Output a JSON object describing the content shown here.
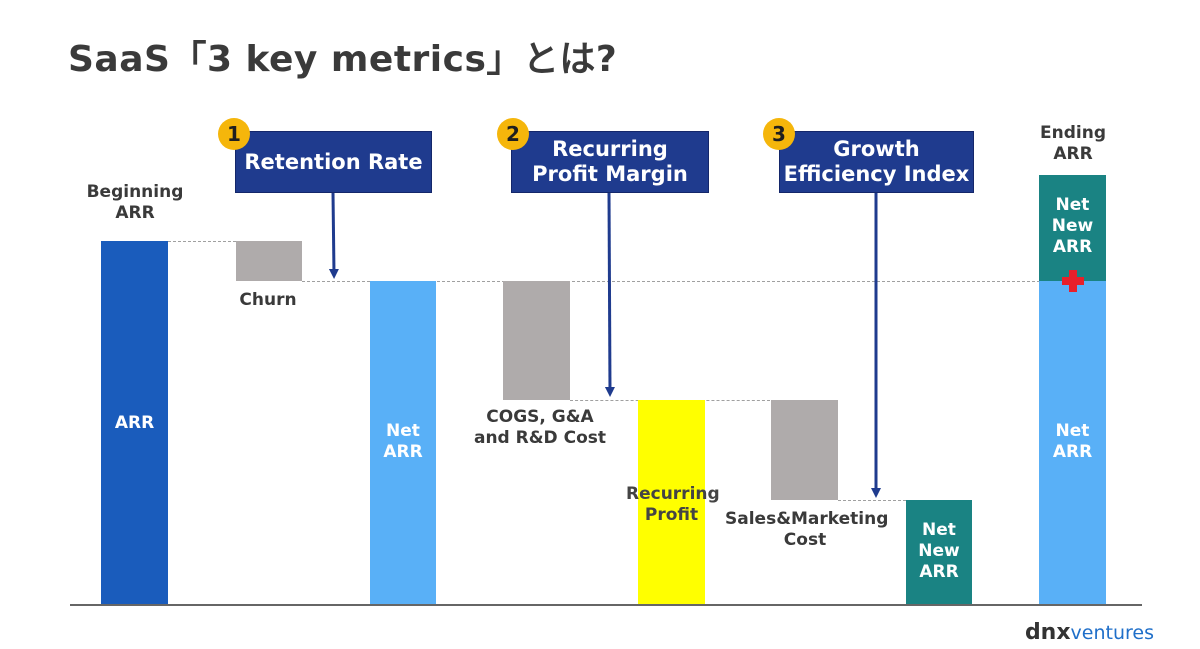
{
  "title": "SaaS「3 key metrics」とは?",
  "metrics": [
    {
      "number": "1",
      "label": "Retention Rate"
    },
    {
      "number": "2",
      "label": "Recurring\nProfit Margin"
    },
    {
      "number": "3",
      "label": "Growth\nEfficiency Index"
    }
  ],
  "labels": {
    "beginning_arr": "Beginning\nARR",
    "ending_arr": "Ending\nARR",
    "churn": "Churn",
    "cogs": "COGS, G&A\nand R&D Cost",
    "sales_marketing": "Sales&Marketing\nCost"
  },
  "bars": {
    "arr": "ARR",
    "net_arr": "Net\nARR",
    "recurring_profit": "Recurring\nProfit",
    "net_new_arr": "Net\nNew\nARR",
    "ending_net_new_arr": "Net\nNew\nARR",
    "ending_net_arr": "Net\nARR"
  },
  "logo": {
    "main": "dnx",
    "accent": "ventures"
  },
  "colors": {
    "dark_blue": "#1a5cbc",
    "light_blue": "#59b0f7",
    "gray": "#afabab",
    "yellow": "#ffff00",
    "teal": "#1a8383",
    "navy_callout": "#1f3b8e",
    "badge": "#f5b60b",
    "plus": "#e8202a"
  }
}
